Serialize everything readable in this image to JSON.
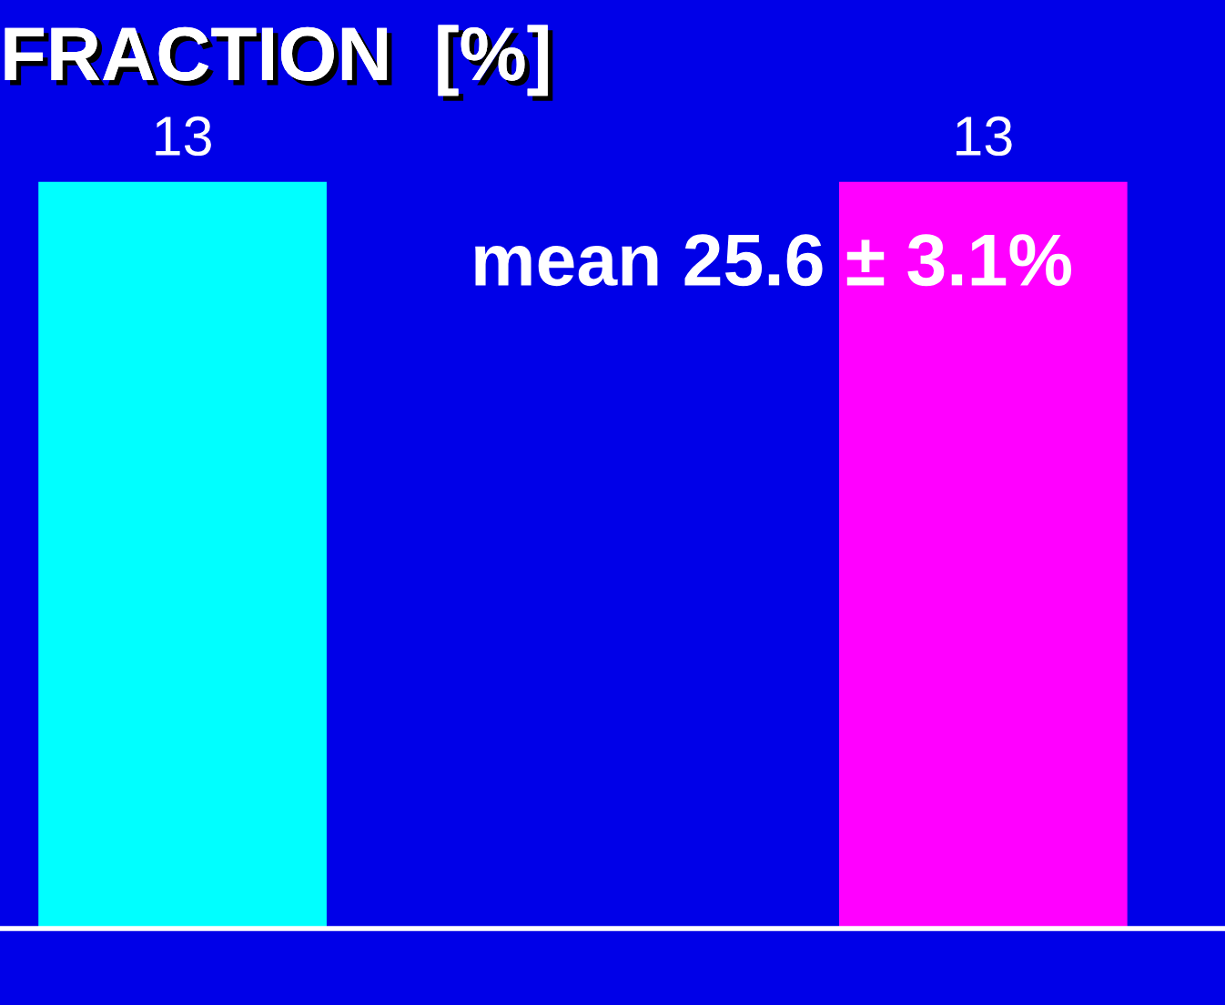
{
  "chart_data": {
    "type": "bar",
    "title": "FRACTION  [%]",
    "categories": [
      null,
      null
    ],
    "values": [
      13,
      13
    ],
    "colors": [
      "#00ffff",
      "#ff00ff"
    ],
    "data_labels": true,
    "annotations": [
      "mean 25.6 ± 3.1%"
    ],
    "grid": false,
    "legend": false
  }
}
